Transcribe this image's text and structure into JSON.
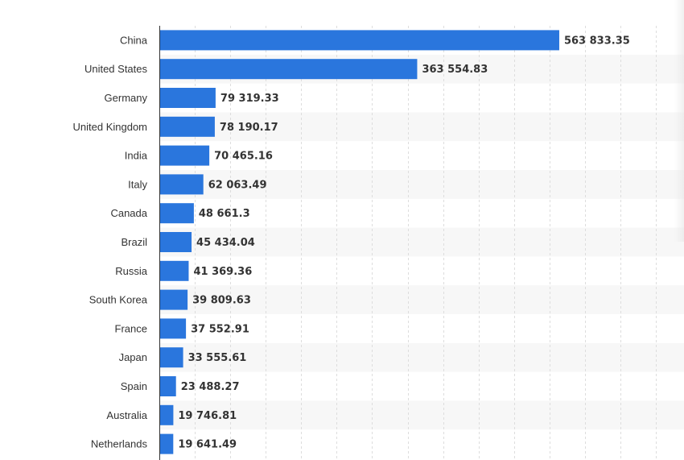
{
  "chart_data": {
    "type": "bar",
    "orientation": "horizontal",
    "title": "",
    "xlabel": "",
    "ylabel": "",
    "categories": [
      "China",
      "United States",
      "Germany",
      "United Kingdom",
      "India",
      "Italy",
      "Canada",
      "Brazil",
      "Russia",
      "South Korea",
      "France",
      "Japan",
      "Spain",
      "Australia",
      "Netherlands"
    ],
    "values": [
      563833.35,
      363554.83,
      79319.33,
      78190.17,
      70465.16,
      62063.49,
      48661.3,
      45434.04,
      41369.36,
      39809.63,
      37552.91,
      33555.61,
      23488.27,
      19746.81,
      19641.49
    ],
    "value_labels": [
      "563 833.35",
      "363 554.83",
      "79 319.33",
      "78 190.17",
      "70 465.16",
      "62 063.49",
      "48 661.3",
      "45 434.04",
      "41 369.36",
      "39 809.63",
      "37 552.91",
      "33 555.61",
      "23 488.27",
      "19 746.81",
      "19 641.49"
    ],
    "xlim": [
      0,
      700000
    ],
    "grid_step": 50000,
    "grid": true,
    "legend": "none",
    "bar_color": "#2a76dd",
    "band_color": "#f7f7f7"
  }
}
